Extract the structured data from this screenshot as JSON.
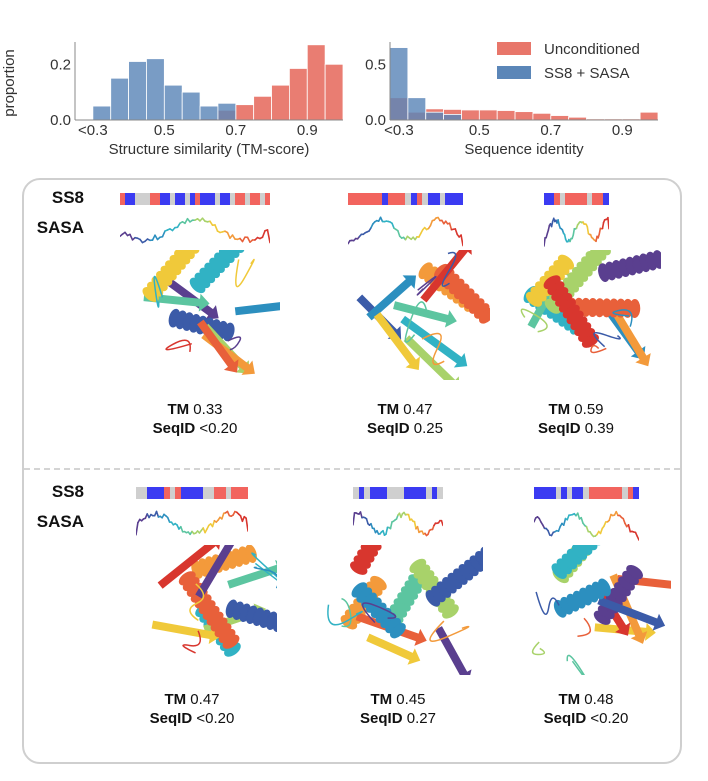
{
  "chart_data": [
    {
      "type": "bar",
      "title": "",
      "xlabel": "Structure similarity (TM-score)",
      "ylabel": "proportion",
      "xlim": [
        0.25,
        1.0
      ],
      "ylim": [
        0,
        0.28
      ],
      "xticks": [
        {
          "value": 0.3,
          "label": "<0.3"
        },
        {
          "value": 0.5,
          "label": "0.5"
        },
        {
          "value": 0.7,
          "label": "0.7"
        },
        {
          "value": 0.9,
          "label": "0.9"
        }
      ],
      "yticks": [
        {
          "value": 0.0,
          "label": "0.0"
        },
        {
          "value": 0.2,
          "label": "0.2"
        }
      ],
      "bin_width": 0.05,
      "bin_starts": [
        0.25,
        0.3,
        0.35,
        0.4,
        0.45,
        0.5,
        0.55,
        0.6,
        0.65,
        0.7,
        0.75,
        0.8,
        0.85,
        0.9,
        0.95
      ],
      "series": [
        {
          "name": "Unconditioned",
          "color": "#e8766a",
          "values": [
            0,
            0,
            0,
            0,
            0,
            0,
            0,
            0.005,
            0.035,
            0.055,
            0.085,
            0.125,
            0.185,
            0.27,
            0.2
          ]
        },
        {
          "name": "SS8 + SASA",
          "color": "#5b86b8",
          "values": [
            0,
            0.05,
            0.15,
            0.21,
            0.22,
            0.125,
            0.1,
            0.05,
            0.06,
            0,
            0,
            0,
            0,
            0,
            0
          ]
        }
      ],
      "grid": false
    },
    {
      "type": "bar",
      "title": "",
      "xlabel": "Sequence identity",
      "ylabel": "",
      "xlim": [
        0.25,
        1.0
      ],
      "ylim": [
        0,
        0.7
      ],
      "xticks": [
        {
          "value": 0.275,
          "label": "<0.3"
        },
        {
          "value": 0.5,
          "label": "0.5"
        },
        {
          "value": 0.7,
          "label": "0.7"
        },
        {
          "value": 0.9,
          "label": "0.9"
        }
      ],
      "yticks": [
        {
          "value": 0.0,
          "label": "0.0"
        },
        {
          "value": 0.5,
          "label": "0.5"
        }
      ],
      "bin_width": 0.05,
      "bin_starts": [
        0.25,
        0.3,
        0.35,
        0.4,
        0.45,
        0.5,
        0.55,
        0.6,
        0.65,
        0.7,
        0.75,
        0.8,
        0.85,
        0.9,
        0.95
      ],
      "series": [
        {
          "name": "Unconditioned",
          "color": "#e8766a",
          "values": [
            0.2,
            0.07,
            0.1,
            0.095,
            0.09,
            0.09,
            0.085,
            0.075,
            0.06,
            0.04,
            0.025,
            0.01,
            0.01,
            0.01,
            0.07
          ]
        },
        {
          "name": "SS8 + SASA",
          "color": "#5b86b8",
          "values": [
            0.65,
            0.2,
            0.07,
            0.05,
            0,
            0,
            0,
            0,
            0,
            0,
            0,
            0,
            0,
            0,
            0
          ]
        }
      ],
      "legend": {
        "placement": "top-right",
        "entries": [
          "Unconditioned",
          "SS8 + SASA"
        ]
      },
      "grid": false
    }
  ],
  "panel": {
    "row_labels": {
      "ss8": "SS8",
      "sasa": "SASA"
    },
    "ss8_colors": {
      "H": "#3b3bf2",
      "E": "#f2645e",
      "C": "#cfcfcf"
    },
    "examples": [
      {
        "tm_label": "TM",
        "tm": "0.33",
        "seqid_label": "SeqID",
        "seqid": "<0.20",
        "ss8": "EHHCCCEEHHCHHCHEHHHCHHCEECEECE"
      },
      {
        "tm_label": "TM",
        "tm": "0.47",
        "seqid_label": "SeqID",
        "seqid": "0.25",
        "ss8": "EEEEEEHEEECHECHHCHHH"
      },
      {
        "tm_label": "TM",
        "tm": "0.59",
        "seqid_label": "SeqID",
        "seqid": "0.39",
        "ss8": "HHECEEEECEEH"
      },
      {
        "tm_label": "TM",
        "tm": "0.47",
        "seqid_label": "SeqID",
        "seqid": "<0.20",
        "ss8": "CCHHHECEHHHHCCEECEEE"
      },
      {
        "tm_label": "TM",
        "tm": "0.45",
        "seqid_label": "SeqID",
        "seqid": "0.27",
        "ss8": "CHCHHHCCCHHHHCHC"
      },
      {
        "tm_label": "TM",
        "tm": "0.48",
        "seqid_label": "SeqID",
        "seqid": "<0.20",
        "ss8": "HHHHCHCHHCEEEEEECEH"
      }
    ]
  }
}
